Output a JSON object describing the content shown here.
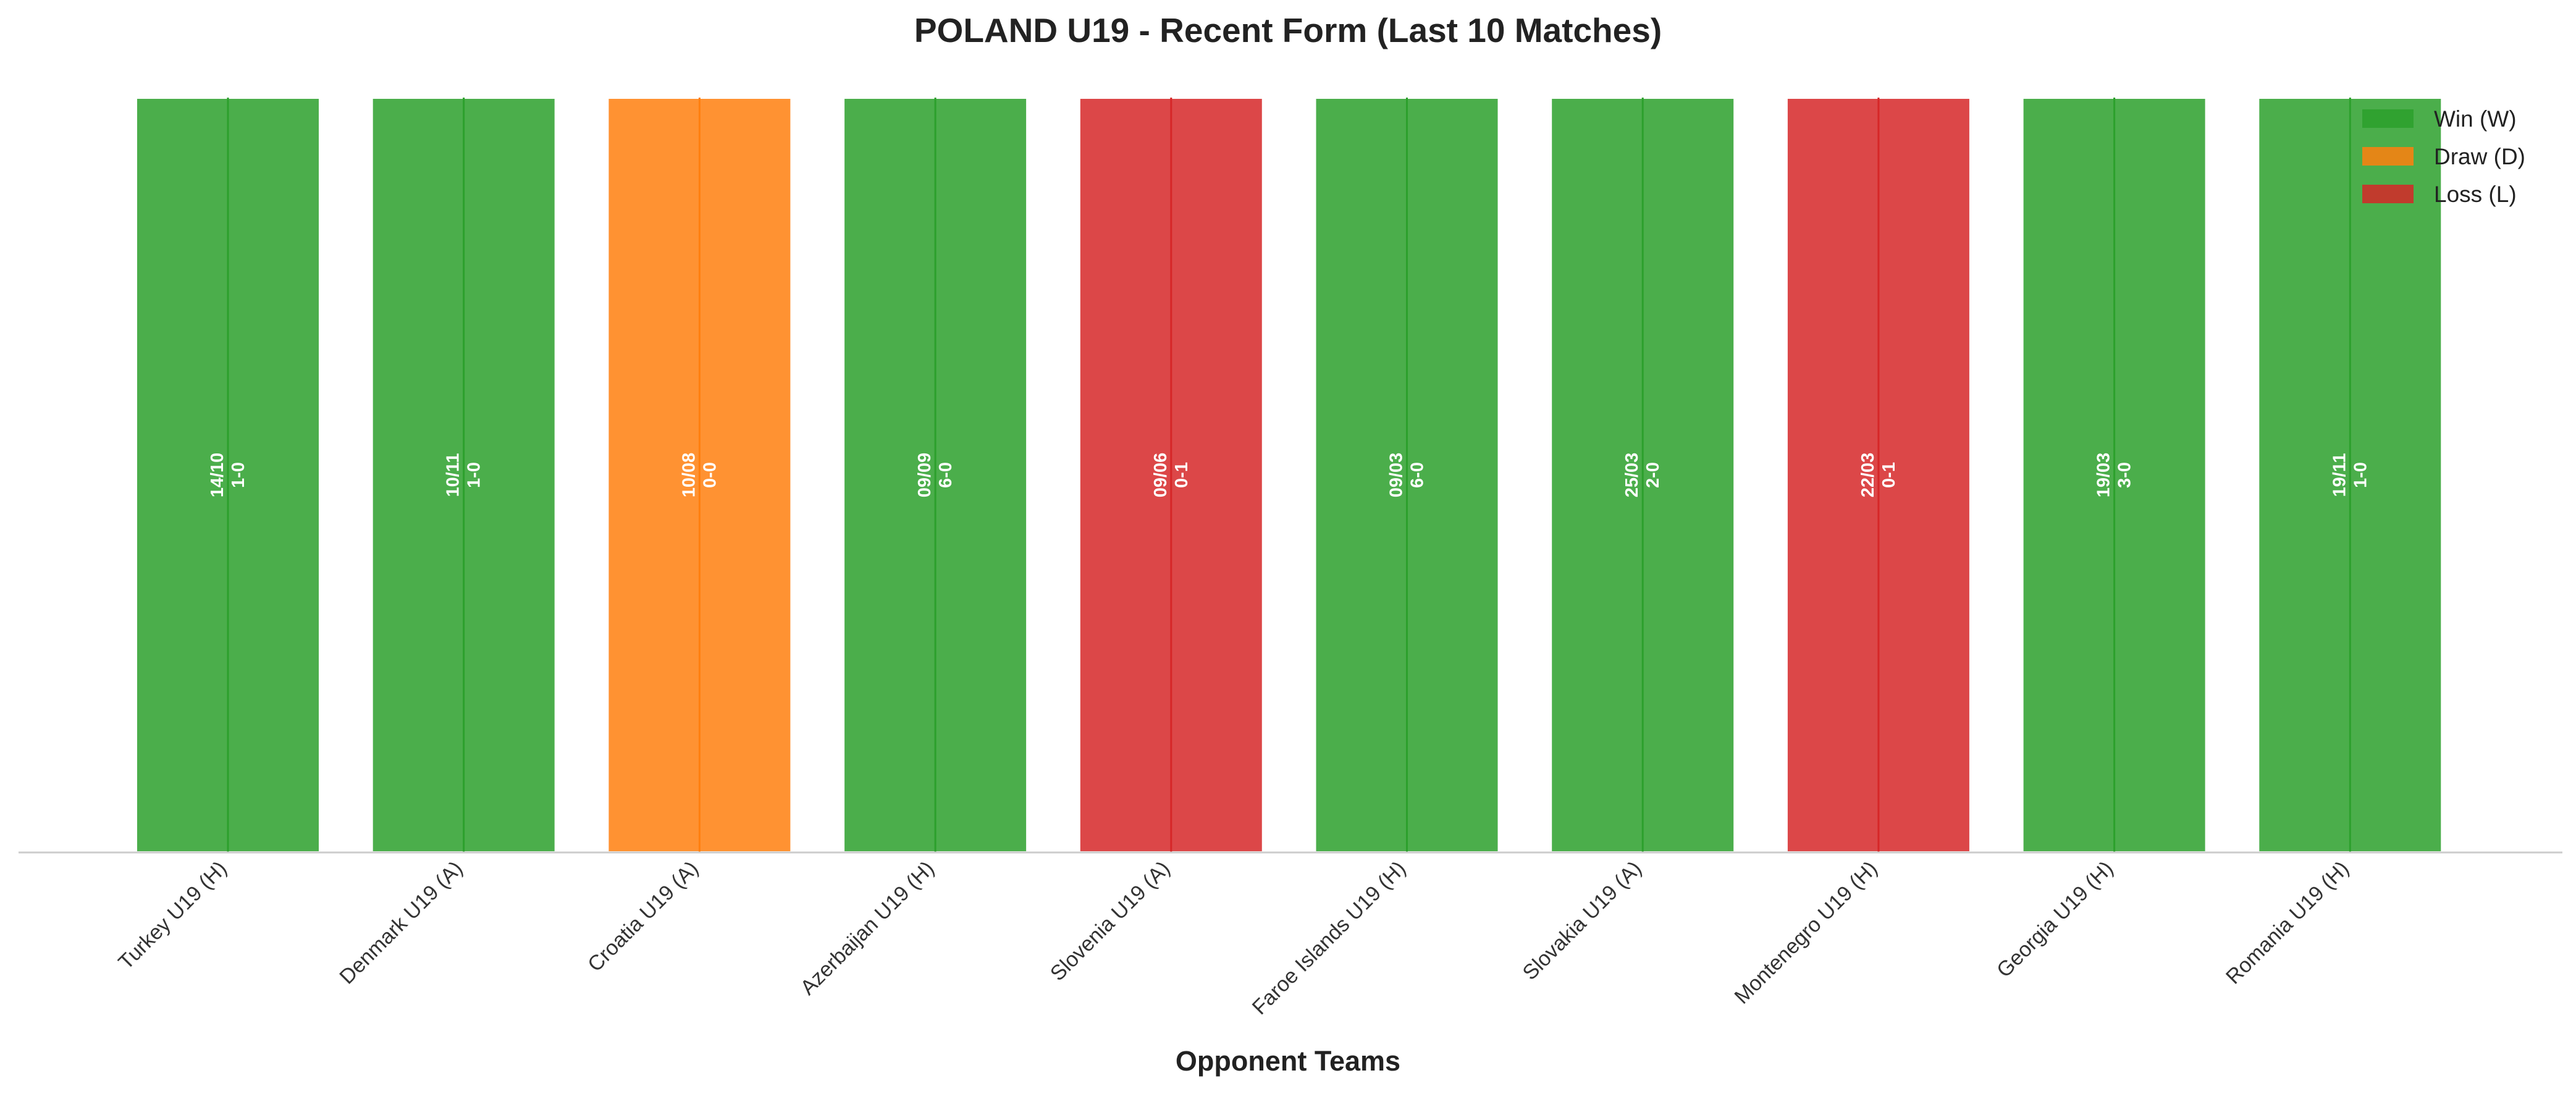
{
  "chart_data": {
    "type": "bar",
    "title": "POLAND U19 - Recent Form (Last 10 Matches)",
    "xlabel": "Opponent Teams",
    "ylabel": "",
    "ylim": [
      0,
      1
    ],
    "grid": false,
    "legend_position": "top-right",
    "categories": [
      "Turkey U19 (H)",
      "Denmark U19 (A)",
      "Croatia U19 (A)",
      "Azerbaijan U19 (H)",
      "Slovenia U19 (A)",
      "Faroe Islands U19 (H)",
      "Slovakia U19 (A)",
      "Montenegro U19 (H)",
      "Georgia U19 (H)",
      "Romania U19 (H)"
    ],
    "values": [
      1,
      1,
      1,
      1,
      1,
      1,
      1,
      1,
      1,
      1
    ],
    "matches": [
      {
        "date": "14/10",
        "score": "1-0",
        "result": "W"
      },
      {
        "date": "10/11",
        "score": "1-0",
        "result": "W"
      },
      {
        "date": "10/08",
        "score": "0-0",
        "result": "D"
      },
      {
        "date": "09/09",
        "score": "6-0",
        "result": "W"
      },
      {
        "date": "09/06",
        "score": "0-1",
        "result": "L"
      },
      {
        "date": "09/03",
        "score": "6-0",
        "result": "W"
      },
      {
        "date": "25/03",
        "score": "2-0",
        "result": "W"
      },
      {
        "date": "22/03",
        "score": "0-1",
        "result": "L"
      },
      {
        "date": "19/03",
        "score": "3-0",
        "result": "W"
      },
      {
        "date": "19/11",
        "score": "1-0",
        "result": "W"
      }
    ],
    "legend": [
      {
        "key": "W",
        "label": "Win (W)",
        "color": "#2ca02c"
      },
      {
        "key": "D",
        "label": "Draw (D)",
        "color": "#ff7f0e"
      },
      {
        "key": "L",
        "label": "Loss (L)",
        "color": "#d62728"
      }
    ]
  }
}
